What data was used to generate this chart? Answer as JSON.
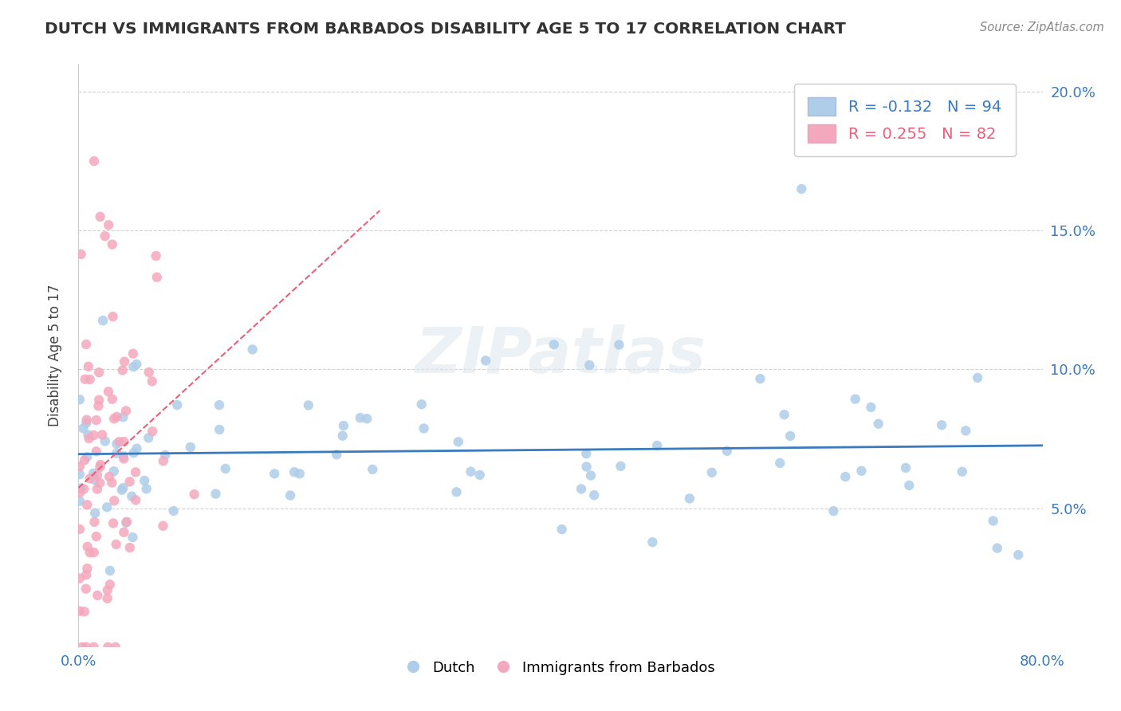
{
  "title": "DUTCH VS IMMIGRANTS FROM BARBADOS DISABILITY AGE 5 TO 17 CORRELATION CHART",
  "source": "Source: ZipAtlas.com",
  "ylabel": "Disability Age 5 to 17",
  "xmin": 0.0,
  "xmax": 0.8,
  "ymin": 0.0,
  "ymax": 0.21,
  "yticks": [
    0.05,
    0.1,
    0.15,
    0.2
  ],
  "ytick_labels": [
    "5.0%",
    "10.0%",
    "15.0%",
    "20.0%"
  ],
  "legend_dutch_r": "-0.132",
  "legend_dutch_n": "94",
  "legend_barbados_r": "0.255",
  "legend_barbados_n": "82",
  "dutch_color": "#aecde8",
  "barbados_color": "#f4a8be",
  "dutch_line_color": "#3a7abf",
  "barbados_line_color": "#e8607a",
  "watermark": "ZIPatlas"
}
